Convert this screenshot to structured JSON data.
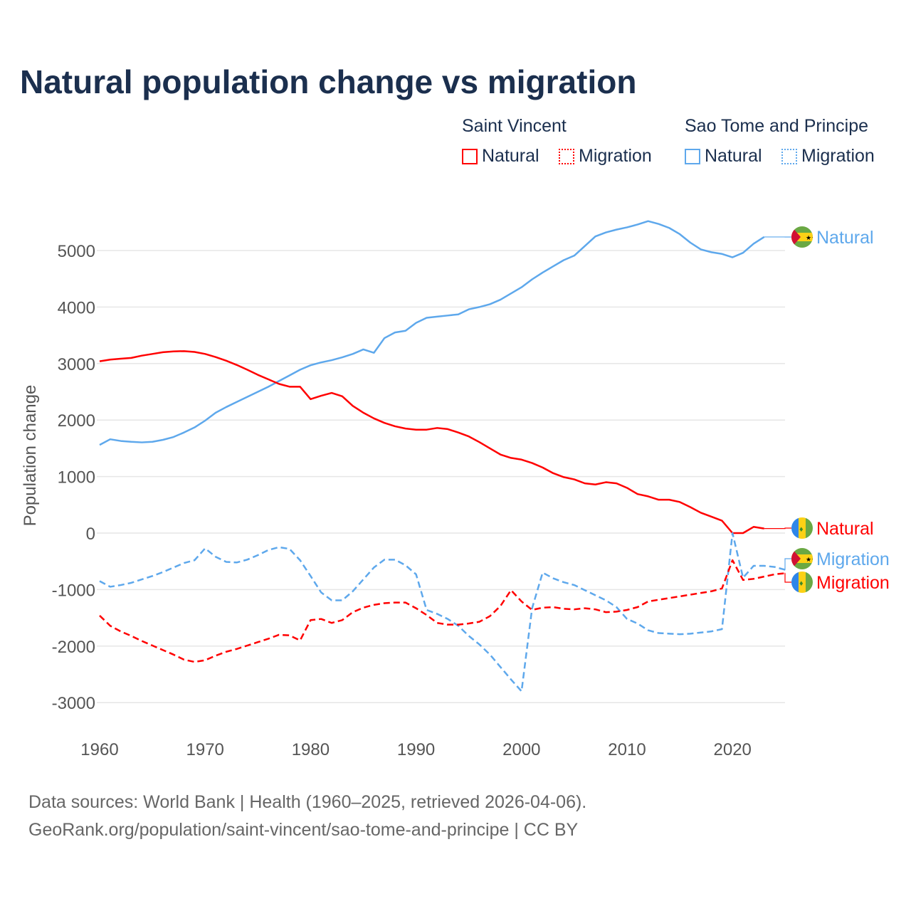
{
  "chart_data": {
    "type": "line",
    "title": "Natural population change vs migration",
    "xlabel": "",
    "ylabel": "Population change",
    "xlim": [
      1960,
      2025
    ],
    "ylim": [
      -3000,
      5500
    ],
    "yticks": [
      -3000,
      -2000,
      -1000,
      0,
      1000,
      2000,
      3000,
      4000,
      5000
    ],
    "ytick_labels": [
      "-3000",
      "-2000",
      "-1000",
      "0",
      "1000",
      "2000",
      "3000",
      "4000",
      "5000"
    ],
    "xticks": [
      1960,
      1970,
      1980,
      1990,
      2000,
      2010,
      2020
    ],
    "xtick_labels": [
      "1960",
      "1970",
      "1980",
      "1990",
      "2000",
      "2010",
      "2020"
    ],
    "grid": true,
    "legend": {
      "placement": "top-right",
      "groups": [
        {
          "name": "Saint Vincent",
          "items": [
            {
              "label": "Natural",
              "style": "solid",
              "color": "#ff0000"
            },
            {
              "label": "Migration",
              "style": "dotted",
              "color": "#ff0000"
            }
          ]
        },
        {
          "name": "Sao Tome and Principe",
          "items": [
            {
              "label": "Natural",
              "style": "solid",
              "color": "#5ea8ec"
            },
            {
              "label": "Migration",
              "style": "dotted",
              "color": "#5ea8ec"
            }
          ]
        }
      ]
    },
    "series": [
      {
        "name": "Sao Tome and Principe Natural",
        "label": "Natural",
        "color": "#5ea8ec",
        "dash": false,
        "start": 1960,
        "flag": "stp",
        "values": [
          1560,
          1660,
          1630,
          1615,
          1605,
          1615,
          1650,
          1700,
          1780,
          1870,
          1990,
          2130,
          2230,
          2320,
          2410,
          2500,
          2590,
          2690,
          2790,
          2890,
          2970,
          3020,
          3060,
          3110,
          3170,
          3250,
          3190,
          3450,
          3550,
          3580,
          3720,
          3810,
          3830,
          3850,
          3870,
          3960,
          4000,
          4050,
          4130,
          4240,
          4350,
          4490,
          4610,
          4720,
          4830,
          4910,
          5080,
          5250,
          5320,
          5370,
          5410,
          5460,
          5520,
          5470,
          5400,
          5290,
          5140,
          5020,
          4970,
          4940,
          4880,
          4960,
          5120,
          5240
        ]
      },
      {
        "name": "Saint Vincent Natural",
        "label": "Natural",
        "color": "#ff0000",
        "dash": false,
        "start": 1960,
        "flag": "svg",
        "values": [
          3040,
          3070,
          3085,
          3100,
          3140,
          3170,
          3200,
          3215,
          3220,
          3205,
          3170,
          3115,
          3050,
          2975,
          2890,
          2800,
          2720,
          2640,
          2590,
          2590,
          2370,
          2430,
          2480,
          2420,
          2250,
          2130,
          2030,
          1950,
          1890,
          1850,
          1830,
          1830,
          1860,
          1840,
          1780,
          1710,
          1610,
          1500,
          1390,
          1330,
          1300,
          1240,
          1160,
          1060,
          990,
          950,
          880,
          860,
          900,
          880,
          800,
          690,
          650,
          590,
          590,
          550,
          460,
          360,
          290,
          220,
          0,
          0,
          110,
          80
        ]
      },
      {
        "name": "Sao Tome and Principe Migration",
        "label": "Migration",
        "color": "#5ea8ec",
        "dash": true,
        "start": 1960,
        "flag": "stp",
        "values": [
          -850,
          -950,
          -920,
          -880,
          -820,
          -760,
          -690,
          -610,
          -530,
          -480,
          -270,
          -420,
          -510,
          -520,
          -470,
          -390,
          -300,
          -250,
          -280,
          -480,
          -760,
          -1050,
          -1190,
          -1190,
          -1030,
          -820,
          -610,
          -470,
          -470,
          -570,
          -730,
          -1360,
          -1430,
          -1520,
          -1640,
          -1820,
          -1970,
          -2150,
          -2370,
          -2590,
          -2800,
          -1330,
          -700,
          -800,
          -870,
          -920,
          -1010,
          -1100,
          -1190,
          -1310,
          -1520,
          -1600,
          -1720,
          -1770,
          -1780,
          -1790,
          -1780,
          -1760,
          -1740,
          -1700,
          0,
          -790,
          -580,
          -580,
          -600,
          -650
        ]
      },
      {
        "name": "Saint Vincent Migration",
        "label": "Migration",
        "color": "#ff0000",
        "dash": true,
        "start": 1960,
        "flag": "svg",
        "values": [
          -1460,
          -1640,
          -1740,
          -1820,
          -1910,
          -1990,
          -2070,
          -2150,
          -2240,
          -2280,
          -2250,
          -2170,
          -2100,
          -2050,
          -1990,
          -1930,
          -1870,
          -1800,
          -1810,
          -1900,
          -1540,
          -1520,
          -1590,
          -1540,
          -1400,
          -1320,
          -1270,
          -1240,
          -1230,
          -1230,
          -1330,
          -1450,
          -1590,
          -1620,
          -1620,
          -1600,
          -1570,
          -1470,
          -1290,
          -1010,
          -1210,
          -1360,
          -1320,
          -1310,
          -1340,
          -1350,
          -1330,
          -1350,
          -1400,
          -1390,
          -1360,
          -1310,
          -1210,
          -1180,
          -1150,
          -1120,
          -1090,
          -1060,
          -1030,
          -980,
          -480,
          -830,
          -810,
          -770,
          -730,
          -710
        ]
      }
    ]
  },
  "source": {
    "line1": "Data sources: World Bank | Health (1960–2025, retrieved 2026-04-06).",
    "line2": "GeoRank.org/population/saint-vincent/sao-tome-and-principe | CC BY"
  }
}
